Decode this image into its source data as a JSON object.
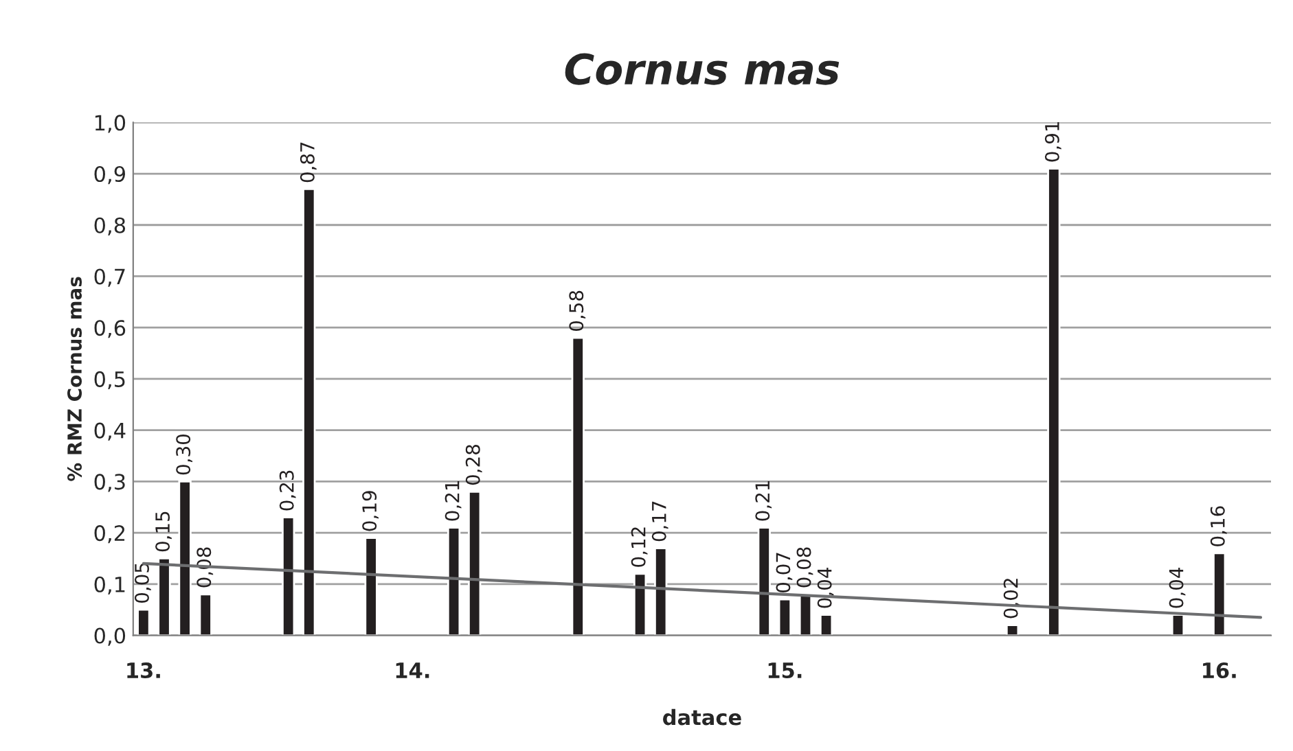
{
  "chart_data": {
    "type": "bar",
    "title": "Cornus mas",
    "xlabel": "datace",
    "ylabel": "% RMZ Cornus mas",
    "categories": [
      "13.",
      null,
      null,
      null,
      null,
      null,
      null,
      null,
      null,
      null,
      null,
      null,
      null,
      "14.",
      null,
      null,
      null,
      null,
      null,
      null,
      null,
      null,
      null,
      null,
      null,
      null,
      null,
      null,
      null,
      null,
      null,
      "15.",
      null,
      null,
      null,
      null,
      null,
      null,
      null,
      null,
      null,
      null,
      null,
      null,
      null,
      null,
      null,
      null,
      null,
      null,
      null,
      null,
      "16.",
      null,
      null
    ],
    "series": [
      {
        "color": "#231f20",
        "values": [
          0.05,
          0.15,
          0.3,
          0.08,
          null,
          null,
          null,
          0.23,
          0.87,
          null,
          null,
          0.19,
          null,
          null,
          null,
          0.21,
          0.28,
          null,
          null,
          null,
          null,
          0.58,
          null,
          null,
          0.12,
          0.17,
          null,
          null,
          null,
          null,
          0.21,
          0.07,
          0.08,
          0.04,
          null,
          null,
          null,
          null,
          null,
          null,
          null,
          null,
          0.02,
          null,
          0.91,
          null,
          null,
          null,
          null,
          null,
          0.04,
          null,
          0.16,
          null,
          null
        ],
        "value_labels": [
          "0,05",
          "0,15",
          "0,30",
          "0,08",
          null,
          null,
          null,
          "0,23",
          "0,87",
          null,
          null,
          "0,19",
          null,
          null,
          null,
          "0,21",
          "0,28",
          null,
          null,
          null,
          null,
          "0,58",
          null,
          null,
          "0,12",
          "0,17",
          null,
          null,
          null,
          null,
          "0,21",
          "0,07",
          "0,08",
          "0,04",
          null,
          null,
          null,
          null,
          null,
          null,
          null,
          null,
          "0,02",
          null,
          "0,91",
          null,
          null,
          null,
          null,
          null,
          "0,04",
          null,
          "0,16",
          null,
          null
        ]
      },
      {
        "type": "line",
        "color": "#6d6e70",
        "values": [
          0.14,
          null,
          null,
          null,
          null,
          null,
          null,
          null,
          null,
          null,
          null,
          null,
          null,
          null,
          null,
          null,
          null,
          null,
          null,
          null,
          null,
          null,
          null,
          null,
          null,
          null,
          null,
          null,
          null,
          null,
          null,
          null,
          null,
          null,
          null,
          null,
          null,
          null,
          null,
          null,
          null,
          null,
          null,
          null,
          null,
          null,
          null,
          null,
          null,
          null,
          null,
          null,
          null,
          null,
          0.035
        ]
      }
    ],
    "ylim": [
      0,
      1
    ],
    "yticks": [
      {
        "value": 0,
        "label": "0,0"
      },
      {
        "value": 0.1,
        "label": "0,1"
      },
      {
        "value": 0.2,
        "label": "0,2"
      },
      {
        "value": 0.3,
        "label": "0,3"
      },
      {
        "value": 0.4,
        "label": "0,4"
      },
      {
        "value": 0.5,
        "label": "0,5"
      },
      {
        "value": 0.6,
        "label": "0,6"
      },
      {
        "value": 0.7,
        "label": "0,7"
      },
      {
        "value": 0.8,
        "label": "0,8"
      },
      {
        "value": 0.9,
        "label": "0,9"
      },
      {
        "value": 1,
        "label": "1,0"
      }
    ],
    "grid": "y"
  }
}
